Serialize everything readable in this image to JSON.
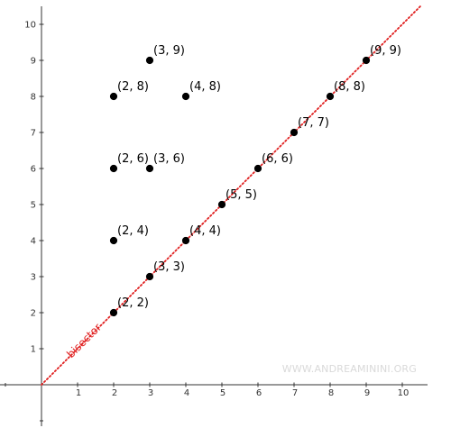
{
  "chart_data": {
    "type": "scatter",
    "title": "",
    "xlabel": "",
    "ylabel": "",
    "xlim": [
      -1.15,
      10.7
    ],
    "ylim": [
      -1.15,
      10.5
    ],
    "grid": false,
    "x_ticks": [
      "1",
      "2",
      "3",
      "4",
      "5",
      "6",
      "7",
      "8",
      "9",
      "10"
    ],
    "y_ticks": [
      "1",
      "2",
      "3",
      "4",
      "5",
      "6",
      "7",
      "8",
      "9",
      "10"
    ],
    "points": [
      {
        "x": 2,
        "y": 2,
        "label": "(2, 2)"
      },
      {
        "x": 3,
        "y": 3,
        "label": "(3, 3)"
      },
      {
        "x": 2,
        "y": 4,
        "label": "(2, 4)"
      },
      {
        "x": 4,
        "y": 4,
        "label": "(4, 4)"
      },
      {
        "x": 5,
        "y": 5,
        "label": "(5, 5)"
      },
      {
        "x": 2,
        "y": 6,
        "label": "(2, 6)"
      },
      {
        "x": 3,
        "y": 6,
        "label": "(3, 6)"
      },
      {
        "x": 6,
        "y": 6,
        "label": "(6, 6)"
      },
      {
        "x": 7,
        "y": 7,
        "label": "(7, 7)"
      },
      {
        "x": 2,
        "y": 8,
        "label": "(2, 8)"
      },
      {
        "x": 4,
        "y": 8,
        "label": "(4, 8)"
      },
      {
        "x": 8,
        "y": 8,
        "label": "(8, 8)"
      },
      {
        "x": 3,
        "y": 9,
        "label": "(3, 9)"
      },
      {
        "x": 9,
        "y": 9,
        "label": "(9, 9)"
      }
    ],
    "line": {
      "label": "bisector",
      "equation": "y = x",
      "color": "#e02020"
    }
  },
  "watermark": "WWW.ANDREAMININI.ORG"
}
